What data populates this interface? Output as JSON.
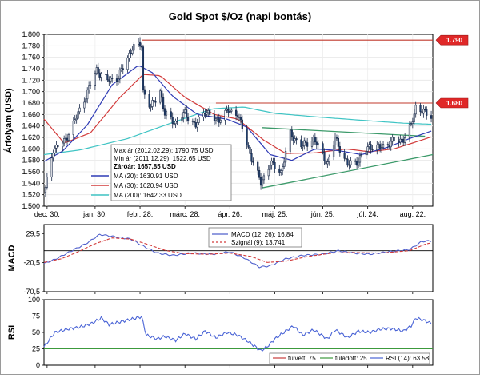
{
  "chart_data": [
    {
      "type": "candlestick",
      "title": "Gold Spot $/Oz (napi bontás)",
      "ylabel": "Árfolyam (USD)",
      "ylim": [
        1500,
        1800
      ],
      "yticks": [
        "1.500",
        "1.520",
        "1.540",
        "1.560",
        "1.580",
        "1.600",
        "1.620",
        "1.640",
        "1.660",
        "1.680",
        "1.700",
        "1.720",
        "1.740",
        "1.760",
        "1.780",
        "1.800"
      ],
      "x_range": [
        "2011-12-28",
        "2012-09-04"
      ],
      "xticks": [
        {
          "date": "2011-12-30",
          "label": "dec. 30."
        },
        {
          "date": "2012-01-30",
          "label": "jan. 30."
        },
        {
          "date": "2012-02-28",
          "label": "febr. 28."
        },
        {
          "date": "2012-03-28",
          "label": "márc. 28."
        },
        {
          "date": "2012-04-26",
          "label": "ápr. 26."
        },
        {
          "date": "2012-05-25",
          "label": "máj. 25."
        },
        {
          "date": "2012-06-25",
          "label": "jún. 25."
        },
        {
          "date": "2012-07-24",
          "label": "júl. 24."
        },
        {
          "date": "2012-08-22",
          "label": "aug. 22."
        }
      ],
      "close_anchors": [
        {
          "date": "2011-12-29",
          "close": 1530
        },
        {
          "date": "2012-01-03",
          "close": 1600
        },
        {
          "date": "2012-01-10",
          "close": 1612
        },
        {
          "date": "2012-01-18",
          "close": 1655
        },
        {
          "date": "2012-01-25",
          "close": 1700
        },
        {
          "date": "2012-01-31",
          "close": 1738
        },
        {
          "date": "2012-02-07",
          "close": 1720
        },
        {
          "date": "2012-02-14",
          "close": 1725
        },
        {
          "date": "2012-02-23",
          "close": 1777
        },
        {
          "date": "2012-02-29",
          "close": 1782
        },
        {
          "date": "2012-03-01",
          "close": 1702
        },
        {
          "date": "2012-03-06",
          "close": 1672
        },
        {
          "date": "2012-03-12",
          "close": 1702
        },
        {
          "date": "2012-03-15",
          "close": 1660
        },
        {
          "date": "2012-03-22",
          "close": 1646
        },
        {
          "date": "2012-03-28",
          "close": 1662
        },
        {
          "date": "2012-04-04",
          "close": 1640
        },
        {
          "date": "2012-04-10",
          "close": 1668
        },
        {
          "date": "2012-04-17",
          "close": 1648
        },
        {
          "date": "2012-04-24",
          "close": 1665
        },
        {
          "date": "2012-05-01",
          "close": 1662
        },
        {
          "date": "2012-05-08",
          "close": 1600
        },
        {
          "date": "2012-05-16",
          "close": 1540
        },
        {
          "date": "2012-05-22",
          "close": 1575
        },
        {
          "date": "2012-05-29",
          "close": 1560
        },
        {
          "date": "2012-06-04",
          "close": 1625
        },
        {
          "date": "2012-06-12",
          "close": 1605
        },
        {
          "date": "2012-06-19",
          "close": 1618
        },
        {
          "date": "2012-06-28",
          "close": 1575
        },
        {
          "date": "2012-07-03",
          "close": 1618
        },
        {
          "date": "2012-07-11",
          "close": 1572
        },
        {
          "date": "2012-07-18",
          "close": 1580
        },
        {
          "date": "2012-07-25",
          "close": 1605
        },
        {
          "date": "2012-08-01",
          "close": 1602
        },
        {
          "date": "2012-08-08",
          "close": 1612
        },
        {
          "date": "2012-08-16",
          "close": 1617
        },
        {
          "date": "2012-08-21",
          "close": 1640
        },
        {
          "date": "2012-08-24",
          "close": 1674
        },
        {
          "date": "2012-08-30",
          "close": 1662
        },
        {
          "date": "2012-09-03",
          "close": 1658
        }
      ],
      "ma20_anchors": [
        {
          "date": "2011-12-28",
          "value": 1578
        },
        {
          "date": "2012-01-09",
          "value": 1596
        },
        {
          "date": "2012-01-25",
          "value": 1642
        },
        {
          "date": "2012-02-10",
          "value": 1712
        },
        {
          "date": "2012-02-27",
          "value": 1746
        },
        {
          "date": "2012-03-07",
          "value": 1733
        },
        {
          "date": "2012-03-20",
          "value": 1692
        },
        {
          "date": "2012-04-05",
          "value": 1660
        },
        {
          "date": "2012-04-24",
          "value": 1652
        },
        {
          "date": "2012-05-07",
          "value": 1638
        },
        {
          "date": "2012-05-22",
          "value": 1590
        },
        {
          "date": "2012-06-05",
          "value": 1580
        },
        {
          "date": "2012-06-20",
          "value": 1600
        },
        {
          "date": "2012-07-05",
          "value": 1597
        },
        {
          "date": "2012-07-20",
          "value": 1590
        },
        {
          "date": "2012-08-06",
          "value": 1603
        },
        {
          "date": "2012-08-20",
          "value": 1618
        },
        {
          "date": "2012-09-03",
          "value": 1631
        }
      ],
      "ma30_anchors": [
        {
          "date": "2011-12-28",
          "value": 1652
        },
        {
          "date": "2012-01-10",
          "value": 1610
        },
        {
          "date": "2012-01-27",
          "value": 1628
        },
        {
          "date": "2012-02-15",
          "value": 1690
        },
        {
          "date": "2012-03-01",
          "value": 1730
        },
        {
          "date": "2012-03-12",
          "value": 1728
        },
        {
          "date": "2012-03-28",
          "value": 1690
        },
        {
          "date": "2012-04-16",
          "value": 1660
        },
        {
          "date": "2012-05-01",
          "value": 1652
        },
        {
          "date": "2012-05-18",
          "value": 1615
        },
        {
          "date": "2012-06-01",
          "value": 1592
        },
        {
          "date": "2012-06-20",
          "value": 1593
        },
        {
          "date": "2012-07-10",
          "value": 1600
        },
        {
          "date": "2012-07-25",
          "value": 1595
        },
        {
          "date": "2012-08-10",
          "value": 1600
        },
        {
          "date": "2012-08-24",
          "value": 1612
        },
        {
          "date": "2012-09-03",
          "value": 1621
        }
      ],
      "ma200_anchors": [
        {
          "date": "2011-12-28",
          "value": 1590
        },
        {
          "date": "2012-01-20",
          "value": 1598
        },
        {
          "date": "2012-02-20",
          "value": 1618
        },
        {
          "date": "2012-03-20",
          "value": 1646
        },
        {
          "date": "2012-04-15",
          "value": 1670
        },
        {
          "date": "2012-05-05",
          "value": 1673
        },
        {
          "date": "2012-05-25",
          "value": 1662
        },
        {
          "date": "2012-06-20",
          "value": 1656
        },
        {
          "date": "2012-07-20",
          "value": 1650
        },
        {
          "date": "2012-08-15",
          "value": 1645
        },
        {
          "date": "2012-09-03",
          "value": 1643
        }
      ],
      "hlines": [
        {
          "value": 1790,
          "label": "1.790",
          "from": "2012-02-29"
        },
        {
          "value": 1680,
          "label": "1.680",
          "from": "2012-04-17"
        }
      ],
      "trendlines": [
        {
          "from": {
            "date": "2012-05-17",
            "value": 1637
          },
          "to": {
            "date": "2012-08-30",
            "value": 1622
          }
        },
        {
          "from": {
            "date": "2012-05-17",
            "value": 1532
          },
          "to": {
            "date": "2012-09-04",
            "value": 1590
          }
        }
      ],
      "info_box": [
        "Max ár (2012.02.29): 1790.75 USD",
        "Min ár (2011.12.29): 1522.65 USD",
        "Záróár: 1657,85 USD"
      ],
      "legend": [
        {
          "name": "MA (20): 1630.91 USD",
          "color": "#2f3bb5"
        },
        {
          "name": "MA (30): 1620.94 USD",
          "color": "#d23b3b"
        },
        {
          "name": "MA (200): 1642.33 USD",
          "color": "#3fc4c4"
        }
      ]
    },
    {
      "type": "line",
      "ylabel": "MACD",
      "ylim": [
        -70.5,
        45
      ],
      "yticks": [
        "29,5",
        "-20,5",
        "-70,5"
      ],
      "zero_line": 0,
      "series": [
        {
          "name": "MACD (12, 26): 16.84",
          "color": "#5060cc",
          "style": "solid",
          "points": [
            {
              "date": "2011-12-28",
              "value": -22
            },
            {
              "date": "2012-01-04",
              "value": -15
            },
            {
              "date": "2012-01-15",
              "value": 0
            },
            {
              "date": "2012-01-24",
              "value": 12
            },
            {
              "date": "2012-02-02",
              "value": 28
            },
            {
              "date": "2012-02-12",
              "value": 24
            },
            {
              "date": "2012-02-22",
              "value": 20
            },
            {
              "date": "2012-03-01",
              "value": 8
            },
            {
              "date": "2012-03-10",
              "value": -4
            },
            {
              "date": "2012-03-20",
              "value": -8
            },
            {
              "date": "2012-04-01",
              "value": -4
            },
            {
              "date": "2012-04-15",
              "value": -6
            },
            {
              "date": "2012-04-26",
              "value": -2
            },
            {
              "date": "2012-05-05",
              "value": -12
            },
            {
              "date": "2012-05-15",
              "value": -28
            },
            {
              "date": "2012-05-22",
              "value": -26
            },
            {
              "date": "2012-06-01",
              "value": -14
            },
            {
              "date": "2012-06-12",
              "value": -8
            },
            {
              "date": "2012-06-25",
              "value": -6
            },
            {
              "date": "2012-07-05",
              "value": 0
            },
            {
              "date": "2012-07-15",
              "value": -4
            },
            {
              "date": "2012-07-25",
              "value": -6
            },
            {
              "date": "2012-08-06",
              "value": -2
            },
            {
              "date": "2012-08-20",
              "value": 2
            },
            {
              "date": "2012-08-28",
              "value": 16
            },
            {
              "date": "2012-09-03",
              "value": 17
            }
          ]
        },
        {
          "name": "Szignál (9): 13.741",
          "color": "#d23b3b",
          "style": "dashed",
          "points": [
            {
              "date": "2011-12-28",
              "value": -20
            },
            {
              "date": "2012-01-08",
              "value": -14
            },
            {
              "date": "2012-01-18",
              "value": -3
            },
            {
              "date": "2012-01-30",
              "value": 12
            },
            {
              "date": "2012-02-10",
              "value": 22
            },
            {
              "date": "2012-02-22",
              "value": 20
            },
            {
              "date": "2012-03-05",
              "value": 10
            },
            {
              "date": "2012-03-16",
              "value": 0
            },
            {
              "date": "2012-03-28",
              "value": -5
            },
            {
              "date": "2012-04-12",
              "value": -6
            },
            {
              "date": "2012-04-26",
              "value": -4
            },
            {
              "date": "2012-05-10",
              "value": -10
            },
            {
              "date": "2012-05-20",
              "value": -20
            },
            {
              "date": "2012-06-01",
              "value": -18
            },
            {
              "date": "2012-06-15",
              "value": -10
            },
            {
              "date": "2012-07-01",
              "value": -4
            },
            {
              "date": "2012-07-15",
              "value": -3
            },
            {
              "date": "2012-08-01",
              "value": -4
            },
            {
              "date": "2012-08-20",
              "value": 0
            },
            {
              "date": "2012-08-30",
              "value": 11
            },
            {
              "date": "2012-09-03",
              "value": 13.7
            }
          ]
        }
      ]
    },
    {
      "type": "line",
      "ylabel": "RSI",
      "ylim": [
        0,
        100
      ],
      "yticks": [
        "100",
        "75",
        "50",
        "25",
        "0"
      ],
      "hlines": [
        {
          "value": 75,
          "name": "túlvett: 75",
          "color": "#c83c3c"
        },
        {
          "value": 25,
          "name": "túladott: 25",
          "color": "#3c9a3c"
        }
      ],
      "series": [
        {
          "name": "RSI (14): 63.58",
          "color": "#4a64d6",
          "points": [
            {
              "date": "2011-12-28",
              "value": 28
            },
            {
              "date": "2012-01-04",
              "value": 50
            },
            {
              "date": "2012-01-12",
              "value": 55
            },
            {
              "date": "2012-01-20",
              "value": 58
            },
            {
              "date": "2012-01-28",
              "value": 64
            },
            {
              "date": "2012-02-03",
              "value": 72
            },
            {
              "date": "2012-02-08",
              "value": 62
            },
            {
              "date": "2012-02-15",
              "value": 66
            },
            {
              "date": "2012-02-22",
              "value": 70
            },
            {
              "date": "2012-02-29",
              "value": 74
            },
            {
              "date": "2012-03-03",
              "value": 46
            },
            {
              "date": "2012-03-10",
              "value": 40
            },
            {
              "date": "2012-03-15",
              "value": 44
            },
            {
              "date": "2012-03-22",
              "value": 38
            },
            {
              "date": "2012-03-28",
              "value": 48
            },
            {
              "date": "2012-04-04",
              "value": 40
            },
            {
              "date": "2012-04-10",
              "value": 52
            },
            {
              "date": "2012-04-17",
              "value": 42
            },
            {
              "date": "2012-04-24",
              "value": 50
            },
            {
              "date": "2012-05-01",
              "value": 46
            },
            {
              "date": "2012-05-08",
              "value": 36
            },
            {
              "date": "2012-05-16",
              "value": 22
            },
            {
              "date": "2012-05-20",
              "value": 28
            },
            {
              "date": "2012-05-25",
              "value": 40
            },
            {
              "date": "2012-06-01",
              "value": 52
            },
            {
              "date": "2012-06-06",
              "value": 60
            },
            {
              "date": "2012-06-12",
              "value": 46
            },
            {
              "date": "2012-06-19",
              "value": 54
            },
            {
              "date": "2012-06-28",
              "value": 40
            },
            {
              "date": "2012-07-03",
              "value": 54
            },
            {
              "date": "2012-07-11",
              "value": 42
            },
            {
              "date": "2012-07-18",
              "value": 52
            },
            {
              "date": "2012-07-25",
              "value": 50
            },
            {
              "date": "2012-08-01",
              "value": 55
            },
            {
              "date": "2012-08-08",
              "value": 56
            },
            {
              "date": "2012-08-16",
              "value": 52
            },
            {
              "date": "2012-08-21",
              "value": 60
            },
            {
              "date": "2012-08-24",
              "value": 72
            },
            {
              "date": "2012-08-30",
              "value": 68
            },
            {
              "date": "2012-09-03",
              "value": 63.58
            }
          ]
        }
      ]
    }
  ]
}
